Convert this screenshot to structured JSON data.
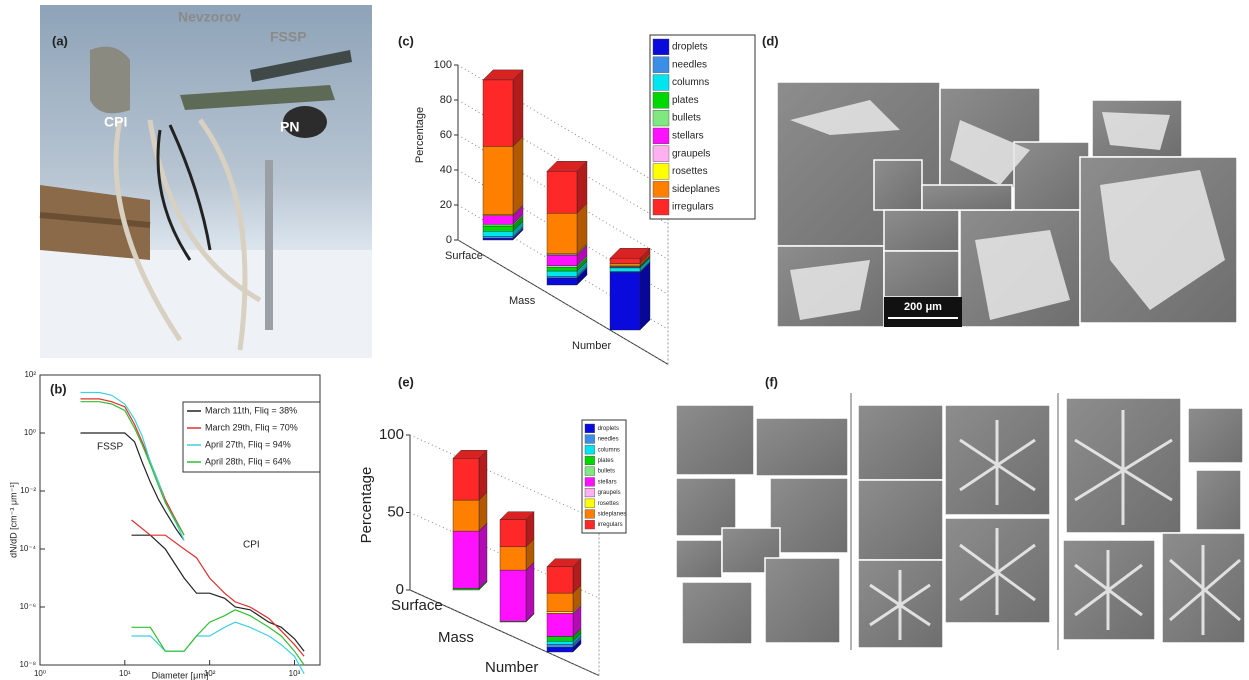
{
  "panels": {
    "a": {
      "label": "(a)",
      "annotations": [
        "Nevzorov",
        "FSSP",
        "CPI",
        "PN"
      ]
    },
    "d": {
      "label": "(d)",
      "scale_bar": "200 μm"
    },
    "f": {
      "label": "(f)"
    }
  },
  "chart_data": [
    {
      "type": "line",
      "label": "(b)",
      "x_label": "Diameter [μm]",
      "y_label": "dN/dD [cm⁻³ μm⁻¹]",
      "annotations": [
        "FSSP",
        "CPI"
      ],
      "log_x": true,
      "log_y": true,
      "legend": "upper right",
      "xlim": [
        1,
        2000
      ],
      "ylim": [
        1e-08,
        100
      ],
      "xticks": [
        {
          "value": 1,
          "label": "10⁰"
        },
        {
          "value": 10,
          "label": "10¹"
        },
        {
          "value": 100,
          "label": "10²"
        },
        {
          "value": 1000,
          "label": "10³"
        }
      ],
      "yticks": [
        {
          "value": 1e-08,
          "label": "10⁻⁸"
        },
        {
          "value": 1e-06,
          "label": "10⁻⁶"
        },
        {
          "value": 0.0001,
          "label": "10⁻⁴"
        },
        {
          "value": 0.01,
          "label": "10⁻²"
        },
        {
          "value": 1,
          "label": "10⁰"
        },
        {
          "value": 100,
          "label": "10²"
        }
      ],
      "x": [
        3,
        5,
        7,
        10,
        13,
        16,
        20,
        25,
        30,
        40,
        50,
        null,
        12,
        20,
        30,
        50,
        70,
        100,
        150,
        200,
        300,
        500,
        700,
        1000,
        1300
      ],
      "series": [
        {
          "name": "March 11th, Fliq = 38%",
          "color": "#222222",
          "values": [
            1,
            1,
            1,
            1,
            0.5,
            0.1,
            0.02,
            0.005,
            0.002,
            0.0005,
            0.0002,
            null,
            0.0003,
            0.0003,
            0.0001,
            1e-05,
            3e-06,
            3e-06,
            2e-06,
            1e-06,
            8e-07,
            3e-07,
            2e-07,
            8e-08,
            3e-08
          ]
        },
        {
          "name": "March 29th, Fliq = 70%",
          "color": "#e03030",
          "values": [
            15,
            15,
            12,
            8,
            2,
            0.5,
            0.1,
            0.02,
            0.005,
            0.001,
            0.0003,
            null,
            0.001,
            0.0003,
            0.0003,
            0.0001,
            5e-05,
            1e-05,
            3e-06,
            1.5e-06,
            1e-06,
            4e-07,
            1.5e-07,
            5e-08,
            2e-08
          ]
        },
        {
          "name": "April 27th, Fliq = 94%",
          "color": "#40d0e0",
          "values": [
            25,
            25,
            20,
            10,
            3,
            0.8,
            0.1,
            0.02,
            0.004,
            0.0008,
            0.0002,
            null,
            1e-07,
            1e-07,
            3e-08,
            3e-08,
            1e-07,
            1e-07,
            2e-07,
            3e-07,
            2e-07,
            1e-07,
            5e-08,
            2e-08,
            5e-09
          ]
        },
        {
          "name": "April 28th, Fliq = 64%",
          "color": "#30c030",
          "values": [
            12,
            12,
            10,
            6,
            1.5,
            0.4,
            0.08,
            0.015,
            0.004,
            0.0009,
            0.0003,
            null,
            2e-07,
            2e-07,
            3e-08,
            3e-08,
            1e-07,
            3e-07,
            5e-07,
            8e-07,
            5e-07,
            2e-07,
            1e-07,
            3e-08,
            1e-08
          ]
        }
      ]
    },
    {
      "type": "bar3d",
      "label": "(c)",
      "y_label": "Percentage",
      "stacked": true,
      "categories": [
        "Surface",
        "Mass",
        "Number"
      ],
      "ylim": [
        0,
        100
      ],
      "yticks": [
        0,
        20,
        40,
        60,
        80,
        100
      ],
      "grid": true,
      "series": [
        {
          "name": "droplets",
          "color": "#0a0adc",
          "values": [
            1,
            4,
            33
          ]
        },
        {
          "name": "needles",
          "color": "#3a8ee6",
          "values": [
            1,
            1,
            0.5
          ]
        },
        {
          "name": "columns",
          "color": "#00e5ee",
          "values": [
            3,
            3,
            2
          ]
        },
        {
          "name": "plates",
          "color": "#00d800",
          "values": [
            3,
            2,
            0.5
          ]
        },
        {
          "name": "bullets",
          "color": "#80e880",
          "values": [
            1,
            1,
            0
          ]
        },
        {
          "name": "stellars",
          "color": "#ff10ff",
          "values": [
            5,
            6,
            0.5
          ]
        },
        {
          "name": "graupels",
          "color": "#ffb0f0",
          "values": [
            0,
            0.5,
            0
          ]
        },
        {
          "name": "rosettes",
          "color": "#ffff00",
          "values": [
            0.5,
            0.5,
            0.5
          ]
        },
        {
          "name": "sideplanes",
          "color": "#ff8000",
          "values": [
            39,
            23,
            1
          ]
        },
        {
          "name": "irregulars",
          "color": "#ff2828",
          "values": [
            38,
            24,
            3
          ]
        }
      ]
    },
    {
      "type": "bar3d",
      "label": "(e)",
      "y_label": "Percentage",
      "stacked": true,
      "categories": [
        "Surface",
        "Mass",
        "Number"
      ],
      "ylim": [
        0,
        100
      ],
      "yticks": [
        0,
        50,
        100
      ],
      "grid": true,
      "series": [
        {
          "name": "droplets",
          "color": "#0a0adc",
          "values": [
            0,
            0,
            3
          ]
        },
        {
          "name": "needles",
          "color": "#3a8ee6",
          "values": [
            0,
            0,
            2
          ]
        },
        {
          "name": "columns",
          "color": "#00e5ee",
          "values": [
            0,
            0,
            2
          ]
        },
        {
          "name": "plates",
          "color": "#00d800",
          "values": [
            1,
            0.5,
            3
          ]
        },
        {
          "name": "bullets",
          "color": "#80e880",
          "values": [
            0,
            0,
            0
          ]
        },
        {
          "name": "stellars",
          "color": "#ff10ff",
          "values": [
            37,
            33,
            15
          ]
        },
        {
          "name": "graupels",
          "color": "#ffb0f0",
          "values": [
            0,
            0,
            0
          ]
        },
        {
          "name": "rosettes",
          "color": "#ffff00",
          "values": [
            0,
            0,
            1
          ]
        },
        {
          "name": "sideplanes",
          "color": "#ff8000",
          "values": [
            20,
            15,
            12
          ]
        },
        {
          "name": "irregulars",
          "color": "#ff2828",
          "values": [
            27,
            17.5,
            17
          ]
        }
      ]
    }
  ]
}
